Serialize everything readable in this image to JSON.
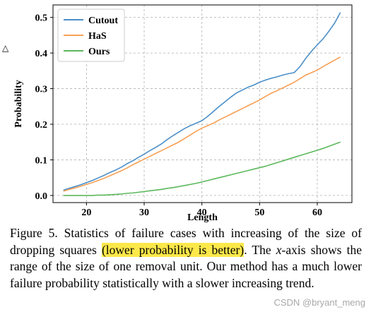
{
  "side_marker": "◁",
  "chart_data": {
    "type": "line",
    "xlabel": "Length",
    "ylabel": "Probability",
    "xlim": [
      14.2,
      66.0
    ],
    "ylim": [
      -0.02,
      0.535
    ],
    "x_ticks": [
      20,
      30,
      40,
      50,
      60
    ],
    "y_ticks": [
      0.0,
      0.1,
      0.2,
      0.3,
      0.4,
      0.5
    ],
    "y_tick_labels": [
      "0.0",
      "0.1",
      "0.2",
      "0.3",
      "0.4",
      "0.5"
    ],
    "x_tick_labels": [
      "20",
      "30",
      "40",
      "50",
      "60"
    ],
    "grid": true,
    "legend_position": "top-left",
    "series": [
      {
        "name": "Cutout",
        "color": "#4c8fc8",
        "x": [
          16,
          17,
          18,
          19,
          20,
          21,
          22,
          23,
          24,
          25,
          26,
          27,
          28,
          29,
          30,
          31,
          32,
          33,
          34,
          35,
          36,
          37,
          38,
          39,
          40,
          41,
          42,
          43,
          44,
          45,
          46,
          47,
          48,
          49,
          50,
          51,
          52,
          53,
          54,
          55,
          56,
          57,
          58,
          59,
          60,
          61,
          62,
          63,
          64
        ],
        "y": [
          0.015,
          0.02,
          0.025,
          0.03,
          0.036,
          0.042,
          0.049,
          0.056,
          0.064,
          0.071,
          0.079,
          0.089,
          0.097,
          0.107,
          0.116,
          0.126,
          0.135,
          0.145,
          0.157,
          0.168,
          0.178,
          0.188,
          0.196,
          0.203,
          0.21,
          0.222,
          0.236,
          0.25,
          0.263,
          0.276,
          0.288,
          0.296,
          0.304,
          0.31,
          0.318,
          0.324,
          0.329,
          0.333,
          0.338,
          0.342,
          0.345,
          0.362,
          0.385,
          0.405,
          0.423,
          0.44,
          0.461,
          0.484,
          0.514
        ]
      },
      {
        "name": "HaS",
        "color": "#f8a054",
        "x": [
          16,
          17,
          18,
          19,
          20,
          21,
          22,
          23,
          24,
          25,
          26,
          27,
          28,
          29,
          30,
          31,
          32,
          33,
          34,
          35,
          36,
          37,
          38,
          39,
          40,
          41,
          42,
          43,
          44,
          45,
          46,
          47,
          48,
          49,
          50,
          51,
          52,
          53,
          54,
          55,
          56,
          57,
          58,
          59,
          60,
          61,
          62,
          63,
          64
        ],
        "y": [
          0.012,
          0.017,
          0.021,
          0.026,
          0.031,
          0.036,
          0.042,
          0.048,
          0.055,
          0.062,
          0.069,
          0.077,
          0.086,
          0.094,
          0.102,
          0.11,
          0.118,
          0.126,
          0.134,
          0.142,
          0.15,
          0.16,
          0.17,
          0.18,
          0.189,
          0.196,
          0.203,
          0.212,
          0.22,
          0.228,
          0.236,
          0.244,
          0.252,
          0.26,
          0.268,
          0.278,
          0.287,
          0.294,
          0.302,
          0.31,
          0.318,
          0.328,
          0.338,
          0.345,
          0.352,
          0.362,
          0.371,
          0.38,
          0.389
        ]
      },
      {
        "name": "Ours",
        "color": "#5cb85c",
        "x": [
          16,
          17,
          18,
          19,
          20,
          21,
          22,
          23,
          24,
          25,
          26,
          27,
          28,
          29,
          30,
          31,
          32,
          33,
          34,
          35,
          36,
          37,
          38,
          39,
          40,
          41,
          42,
          43,
          44,
          45,
          46,
          47,
          48,
          49,
          50,
          51,
          52,
          53,
          54,
          55,
          56,
          57,
          58,
          59,
          60,
          61,
          62,
          63,
          64
        ],
        "y": [
          0.0,
          0.0,
          0.0,
          0.0,
          0.0,
          0.0,
          0.001,
          0.001,
          0.002,
          0.003,
          0.004,
          0.006,
          0.007,
          0.009,
          0.011,
          0.013,
          0.015,
          0.017,
          0.02,
          0.022,
          0.025,
          0.028,
          0.031,
          0.034,
          0.038,
          0.042,
          0.046,
          0.05,
          0.054,
          0.058,
          0.062,
          0.066,
          0.07,
          0.074,
          0.078,
          0.082,
          0.087,
          0.092,
          0.097,
          0.102,
          0.107,
          0.112,
          0.117,
          0.122,
          0.127,
          0.132,
          0.138,
          0.144,
          0.15
        ]
      }
    ]
  },
  "caption": {
    "prefix": "Figure 5. Statistics of failure cases with increasing of the size of dropping squares ",
    "highlight": "(lower probability is better)",
    "mid1": ". The ",
    "var_x": "x",
    "mid2": "-axis shows the range of the size of one removal unit.  Our method has a much lower failure probability statistically with a slower increasing trend."
  },
  "watermark": "CSDN @bryant_meng"
}
